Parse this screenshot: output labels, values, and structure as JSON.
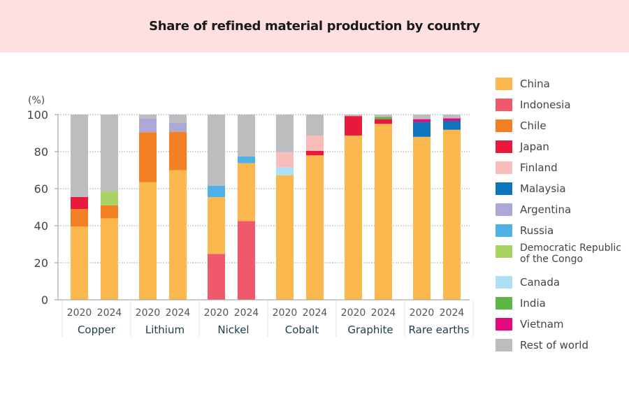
{
  "title": "Share of refined material production by country",
  "chart_data": {
    "type": "bar",
    "stacked": true,
    "title": "Share of refined material production by country",
    "ylabel": "(%)",
    "xlabel": "",
    "ylim": [
      0,
      100
    ],
    "yticks": [
      0,
      20,
      40,
      60,
      80,
      100
    ],
    "grid": true,
    "legend_position": "right",
    "groups": [
      "Copper",
      "Lithium",
      "Nickel",
      "Cobalt",
      "Graphite",
      "Rare earths"
    ],
    "years": [
      "2020",
      "2024"
    ],
    "countries": [
      {
        "name": "China",
        "color": "#fbb84f"
      },
      {
        "name": "Indonesia",
        "color": "#f0596b"
      },
      {
        "name": "Chile",
        "color": "#f48024"
      },
      {
        "name": "Japan",
        "color": "#e8193c"
      },
      {
        "name": "Finland",
        "color": "#f8bcbb"
      },
      {
        "name": "Malaysia",
        "color": "#0e74bd"
      },
      {
        "name": "Argentina",
        "color": "#ada9d6"
      },
      {
        "name": "Russia",
        "color": "#4fb2e6"
      },
      {
        "name": "Democratic Republic of the Congo",
        "color": "#a9d464"
      },
      {
        "name": "Canada",
        "color": "#ace0f5"
      },
      {
        "name": "India",
        "color": "#5eb548"
      },
      {
        "name": "Vietnam",
        "color": "#e4087c"
      },
      {
        "name": "Rest of world",
        "color": "#bcbdbf"
      }
    ],
    "bars": [
      {
        "group": "Copper",
        "year": "2020",
        "segments": [
          {
            "country": "China",
            "value": 39.5
          },
          {
            "country": "Chile",
            "value": 9.5
          },
          {
            "country": "Japan",
            "value": 6.5
          },
          {
            "country": "Rest of world",
            "value": 44.5
          }
        ]
      },
      {
        "group": "Copper",
        "year": "2024",
        "segments": [
          {
            "country": "China",
            "value": 44
          },
          {
            "country": "Chile",
            "value": 7
          },
          {
            "country": "Democratic Republic of the Congo",
            "value": 7.5
          },
          {
            "country": "Rest of world",
            "value": 41.5
          }
        ]
      },
      {
        "group": "Lithium",
        "year": "2020",
        "segments": [
          {
            "country": "China",
            "value": 63.5
          },
          {
            "country": "Chile",
            "value": 27
          },
          {
            "country": "Argentina",
            "value": 7.5
          },
          {
            "country": "Rest of world",
            "value": 2
          }
        ]
      },
      {
        "group": "Lithium",
        "year": "2024",
        "segments": [
          {
            "country": "China",
            "value": 70
          },
          {
            "country": "Chile",
            "value": 20.7
          },
          {
            "country": "Argentina",
            "value": 5
          },
          {
            "country": "Rest of world",
            "value": 4.3
          }
        ]
      },
      {
        "group": "Nickel",
        "year": "2020",
        "segments": [
          {
            "country": "Indonesia",
            "value": 24.8
          },
          {
            "country": "China",
            "value": 30.6
          },
          {
            "country": "Russia",
            "value": 6.1
          },
          {
            "country": "Rest of world",
            "value": 38.5
          }
        ]
      },
      {
        "group": "Nickel",
        "year": "2024",
        "segments": [
          {
            "country": "Indonesia",
            "value": 42.5
          },
          {
            "country": "China",
            "value": 31.3
          },
          {
            "country": "Russia",
            "value": 3.6
          },
          {
            "country": "Rest of world",
            "value": 22.6
          }
        ]
      },
      {
        "group": "Cobalt",
        "year": "2020",
        "segments": [
          {
            "country": "China",
            "value": 67.3
          },
          {
            "country": "Canada",
            "value": 4.3
          },
          {
            "country": "Finland",
            "value": 8.1
          },
          {
            "country": "Rest of world",
            "value": 20.3
          }
        ]
      },
      {
        "group": "Cobalt",
        "year": "2024",
        "segments": [
          {
            "country": "China",
            "value": 78
          },
          {
            "country": "Japan",
            "value": 2.4
          },
          {
            "country": "Finland",
            "value": 8.3
          },
          {
            "country": "Rest of world",
            "value": 11.3
          }
        ]
      },
      {
        "group": "Graphite",
        "year": "2020",
        "segments": [
          {
            "country": "China",
            "value": 88.7
          },
          {
            "country": "Japan",
            "value": 10.5
          },
          {
            "country": "Rest of world",
            "value": 0.8
          }
        ]
      },
      {
        "group": "Graphite",
        "year": "2024",
        "segments": [
          {
            "country": "China",
            "value": 95
          },
          {
            "country": "Japan",
            "value": 2.5
          },
          {
            "country": "India",
            "value": 1.2
          },
          {
            "country": "Rest of world",
            "value": 1.3
          }
        ]
      },
      {
        "group": "Rare earths",
        "year": "2020",
        "segments": [
          {
            "country": "China",
            "value": 88
          },
          {
            "country": "Malaysia",
            "value": 8
          },
          {
            "country": "Vietnam",
            "value": 1.5
          },
          {
            "country": "Rest of world",
            "value": 2.5
          }
        ]
      },
      {
        "group": "Rare earths",
        "year": "2024",
        "segments": [
          {
            "country": "China",
            "value": 91.8
          },
          {
            "country": "Malaysia",
            "value": 4.8
          },
          {
            "country": "Vietnam",
            "value": 1.4
          },
          {
            "country": "Rest of world",
            "value": 2
          }
        ]
      }
    ]
  },
  "legend": [
    {
      "label": "China",
      "color": "#fbb84f"
    },
    {
      "label": "Indonesia",
      "color": "#f0596b"
    },
    {
      "label": "Chile",
      "color": "#f48024"
    },
    {
      "label": "Japan",
      "color": "#e8193c"
    },
    {
      "label": "Finland",
      "color": "#f8bcbb"
    },
    {
      "label": "Malaysia",
      "color": "#0e74bd"
    },
    {
      "label": "Argentina",
      "color": "#ada9d6"
    },
    {
      "label": "Russia",
      "color": "#4fb2e6"
    },
    {
      "label": "Democratic Republic of the Congo",
      "label_line1": "Democratic Republic",
      "label_line2": "of the Congo",
      "color": "#a9d464"
    },
    {
      "label": "Canada",
      "color": "#ace0f5"
    },
    {
      "label": "India",
      "color": "#5eb548"
    },
    {
      "label": "Vietnam",
      "color": "#e4087c"
    },
    {
      "label": "Rest of world",
      "color": "#bcbdbf"
    }
  ]
}
